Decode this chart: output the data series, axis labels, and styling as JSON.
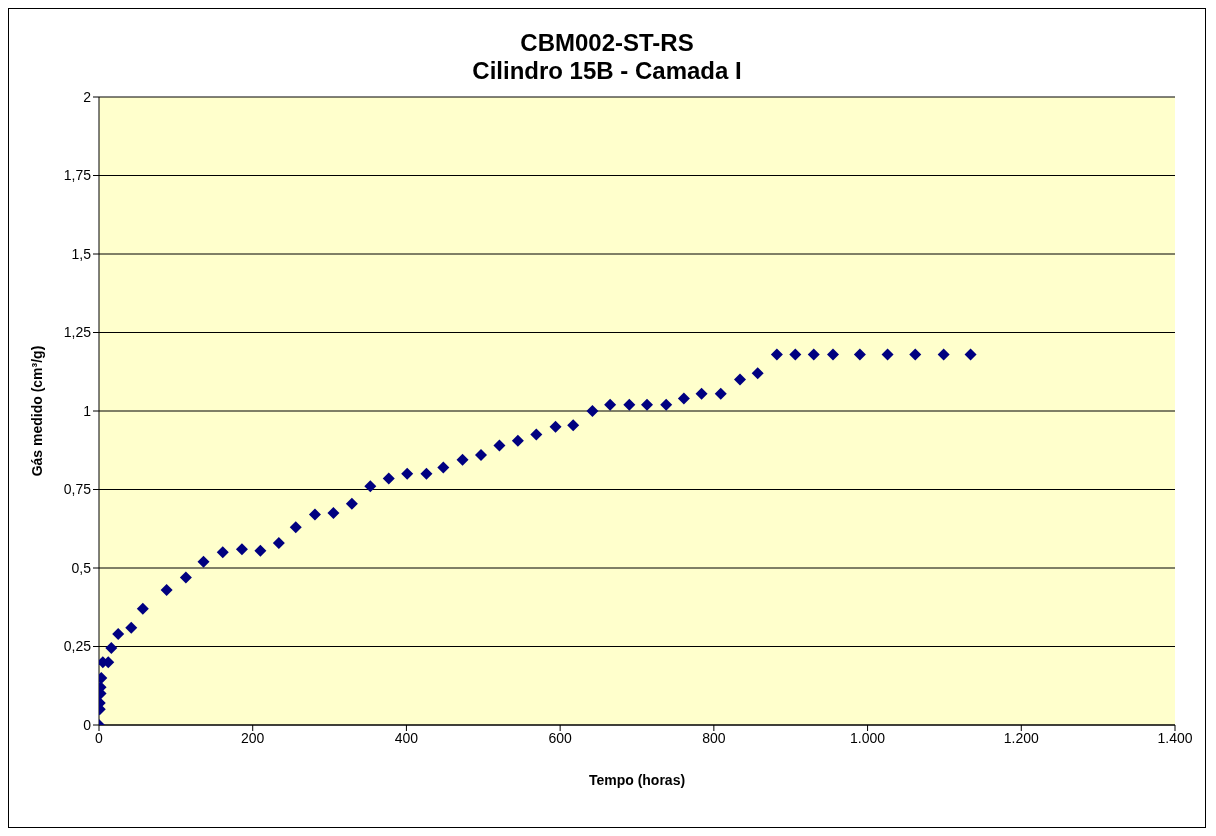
{
  "chart_data": {
    "type": "scatter",
    "title": "CBM002-ST-RS\nCilindro 15B - Camada I",
    "xlabel": "Tempo (horas)",
    "ylabel": "Gás medido (cm³/g)",
    "x": [
      0,
      1,
      1,
      2,
      2,
      3,
      5,
      12,
      16,
      25,
      42,
      57,
      88,
      113,
      136,
      161,
      186,
      210,
      234,
      256,
      281,
      305,
      329,
      353,
      377,
      401,
      426,
      448,
      473,
      497,
      521,
      545,
      569,
      594,
      617,
      642,
      665,
      690,
      713,
      738,
      761,
      784,
      809,
      834,
      857,
      882,
      906,
      930,
      955,
      990,
      1026,
      1062,
      1099,
      1134
    ],
    "series": [
      {
        "color": "#000080",
        "values": [
          0,
          0.05,
          0.07,
          0.1,
          0.12,
          0.15,
          0.2,
          0.2,
          0.245,
          0.29,
          0.31,
          0.37,
          0.43,
          0.47,
          0.52,
          0.55,
          0.56,
          0.555,
          0.58,
          0.63,
          0.67,
          0.675,
          0.705,
          0.76,
          0.785,
          0.8,
          0.8,
          0.82,
          0.845,
          0.86,
          0.89,
          0.905,
          0.925,
          0.95,
          0.955,
          1.0,
          1.02,
          1.02,
          1.02,
          1.02,
          1.04,
          1.055,
          1.055,
          1.1,
          1.12,
          1.18,
          1.18,
          1.18,
          1.18,
          1.18,
          1.18,
          1.18,
          1.18,
          1.18
        ]
      }
    ],
    "xlim": [
      0,
      1400
    ],
    "xticks": [
      0,
      200,
      400,
      600,
      800,
      {
        "value": 1000,
        "label": "1.000"
      },
      {
        "value": 1200,
        "label": "1.200"
      },
      {
        "value": 1400,
        "label": "1.400"
      }
    ],
    "ylim": [
      0,
      2
    ],
    "yticks": [
      0,
      {
        "value": 0.25,
        "label": "0,25"
      },
      {
        "value": 0.5,
        "label": "0,5"
      },
      {
        "value": 0.75,
        "label": "0,75"
      },
      1,
      {
        "value": 1.25,
        "label": "1,25"
      },
      {
        "value": 1.5,
        "label": "1,5"
      },
      {
        "value": 1.75,
        "label": "1,75"
      },
      2
    ],
    "grid": "y",
    "marker": "diamond"
  }
}
